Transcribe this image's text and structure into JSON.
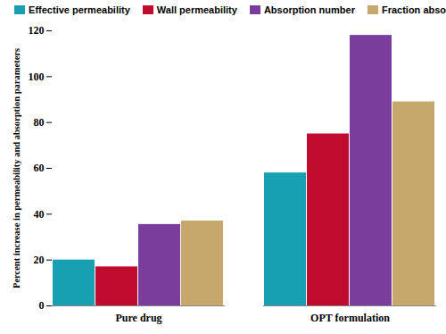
{
  "chart_data": {
    "type": "bar",
    "y_label": "Percent increase in permeability and absorption parameters",
    "categories": [
      "Pure drug",
      "OPT formulation"
    ],
    "series": [
      {
        "name": "Effective permeability",
        "color": "#17a0b2",
        "values": [
          20,
          58
        ]
      },
      {
        "name": "Wall permeability",
        "color": "#c00a2e",
        "values": [
          17,
          75
        ]
      },
      {
        "name": "Absorption number",
        "color": "#7a3d9c",
        "values": [
          35.5,
          118
        ]
      },
      {
        "name": "Fraction absorbed",
        "color": "#c6a86c",
        "values": [
          37,
          89
        ]
      }
    ],
    "ylim": [
      0,
      120
    ],
    "yticks": [
      0,
      20,
      40,
      60,
      80,
      100,
      120
    ],
    "grid": false,
    "legend": "top"
  }
}
